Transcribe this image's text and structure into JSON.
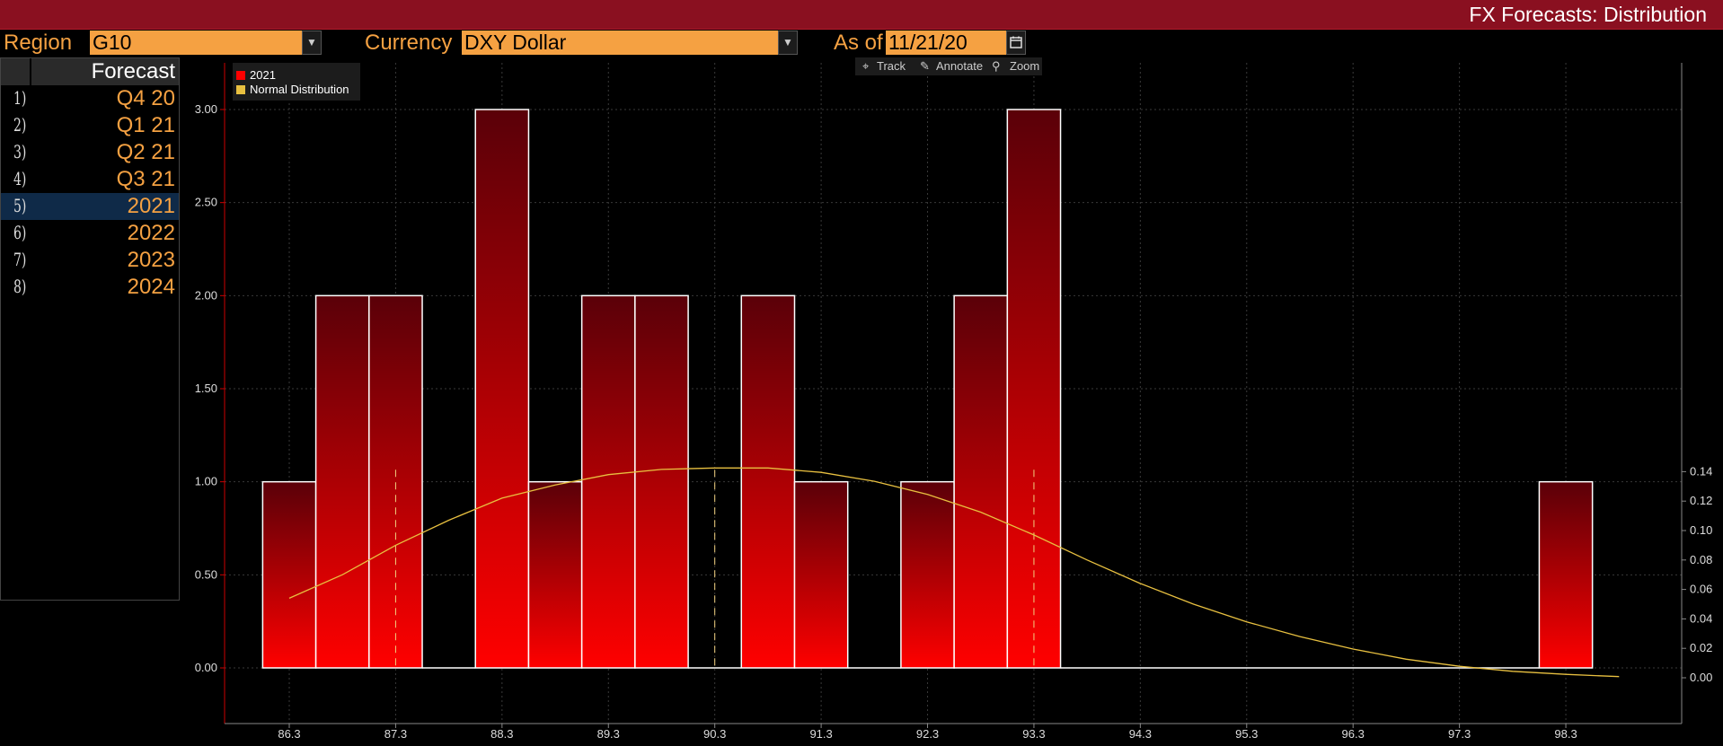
{
  "window": {
    "title": "FX Forecasts: Distribution"
  },
  "toolbar": {
    "region_label": "Region",
    "region_value": "G10",
    "currency_label": "Currency",
    "currency_value": "DXY Dollar",
    "asof_label": "As of",
    "asof_value": "11/21/20",
    "dropdown_glyph": "▼"
  },
  "forecast_list": {
    "header": "Forecast",
    "selected_index": 4,
    "items": [
      {
        "num": "1)",
        "label": "Q4 20"
      },
      {
        "num": "2)",
        "label": "Q1 21"
      },
      {
        "num": "3)",
        "label": "Q2 21"
      },
      {
        "num": "4)",
        "label": "Q3 21"
      },
      {
        "num": "5)",
        "label": "2021"
      },
      {
        "num": "6)",
        "label": "2022"
      },
      {
        "num": "7)",
        "label": "2023"
      },
      {
        "num": "8)",
        "label": "2024"
      }
    ]
  },
  "chart_tools": {
    "track": "Track",
    "annotate": "Annotate",
    "zoom": "Zoom"
  },
  "colors": {
    "bar_top": "#5a0008",
    "bar_bottom": "#ff0000",
    "curve": "#e8c040",
    "accent": "#f5a142",
    "title_bar": "#8a1020"
  },
  "chart_data": {
    "type": "bar",
    "legend": [
      "2021",
      "Normal Distribution"
    ],
    "legend_position": "top-left",
    "grid": true,
    "x_ticks": [
      86.3,
      87.3,
      88.3,
      89.3,
      90.3,
      91.3,
      92.3,
      93.3,
      94.3,
      95.3,
      96.3,
      97.3,
      98.3
    ],
    "x_tick_labels": [
      "86.3",
      "87.3",
      "88.3",
      "89.3",
      "90.3",
      "91.3",
      "92.3",
      "93.3",
      "94.3",
      "95.3",
      "96.3",
      "97.3",
      "98.3"
    ],
    "xlim": [
      85.7,
      99.2
    ],
    "y_left": {
      "ylim": [
        -0.25,
        3.25
      ],
      "ticks": [
        0,
        0.5,
        1,
        1.5,
        2,
        2.5,
        3
      ],
      "tick_labels": [
        "0.00",
        "0.50",
        "1.00",
        "1.50",
        "2.00",
        "2.50",
        "3.00"
      ]
    },
    "y_right": {
      "ylim": [
        -0.009,
        0.144
      ],
      "ticks": [
        0,
        0.02,
        0.04,
        0.06,
        0.08,
        0.1,
        0.12,
        0.14
      ],
      "tick_labels": [
        "0.00",
        "0.02",
        "0.04",
        "0.06",
        "0.08",
        "0.10",
        "0.12",
        "0.14"
      ]
    },
    "series": [
      {
        "name": "2021",
        "bin_width": 0.5,
        "bins": [
          86.3,
          86.8,
          87.3,
          87.8,
          88.3,
          88.8,
          89.3,
          89.8,
          90.3,
          90.8,
          91.3,
          91.8,
          92.3,
          92.8,
          93.3,
          93.8,
          94.3,
          94.8,
          95.3,
          95.8,
          96.3,
          96.8,
          97.3,
          97.8,
          98.3
        ],
        "values": [
          1,
          2,
          2,
          0,
          3,
          1,
          2,
          2,
          0,
          2,
          1,
          0,
          1,
          2,
          3,
          0,
          0,
          0,
          0,
          0,
          0,
          0,
          0,
          0,
          1
        ]
      },
      {
        "name": "Normal Distribution",
        "x": [
          86.3,
          86.8,
          87.3,
          87.8,
          88.3,
          88.8,
          89.3,
          89.8,
          90.3,
          90.8,
          91.3,
          91.8,
          92.3,
          92.8,
          93.3,
          93.8,
          94.3,
          94.8,
          95.3,
          95.8,
          96.3,
          96.8,
          97.3,
          97.8,
          98.3,
          98.8
        ],
        "values": [
          0.054,
          0.07,
          0.09,
          0.107,
          0.122,
          0.131,
          0.138,
          0.1415,
          0.1425,
          0.1425,
          0.1395,
          0.1335,
          0.1245,
          0.1125,
          0.097,
          0.08,
          0.064,
          0.05,
          0.038,
          0.028,
          0.0195,
          0.0126,
          0.0078,
          0.0044,
          0.0023,
          0.0008
        ]
      }
    ],
    "reference_lines": [
      87.3,
      90.3,
      93.3
    ]
  }
}
